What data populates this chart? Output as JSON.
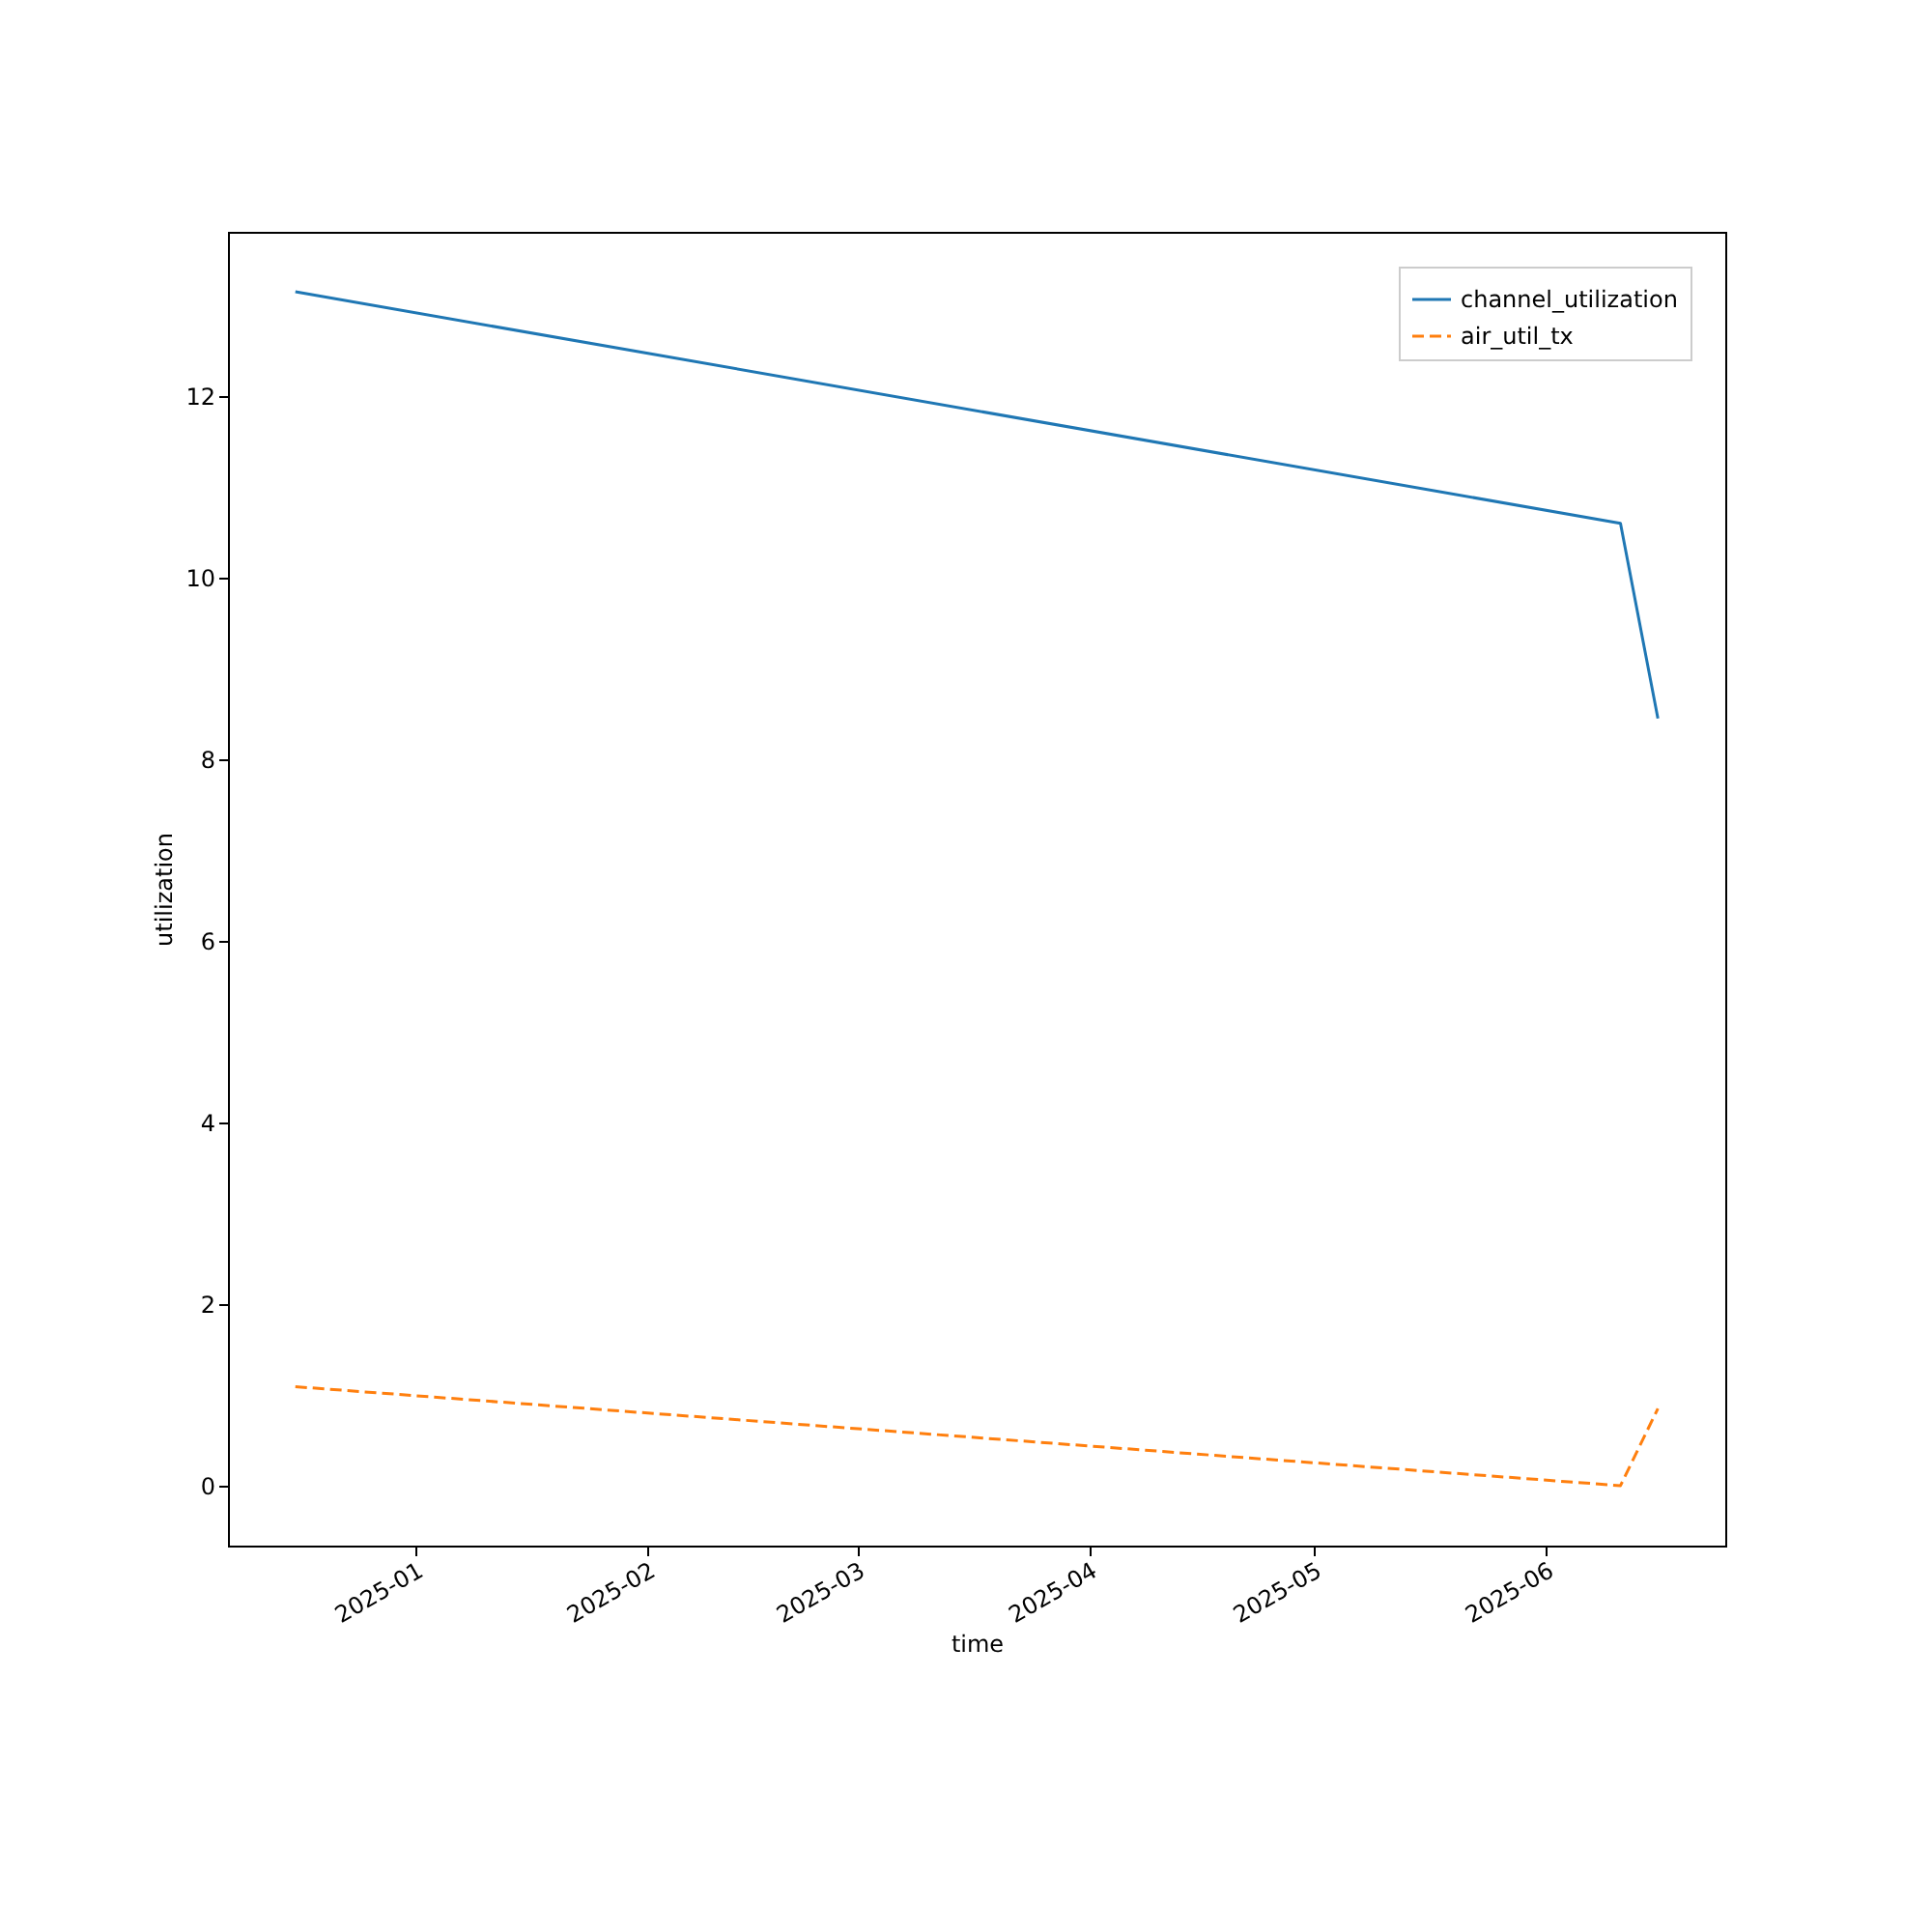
{
  "chart_data": {
    "type": "line",
    "xlabel": "time",
    "ylabel": "utilization",
    "x": [
      "2024-12-16",
      "2025-06-11",
      "2025-06-16"
    ],
    "series": [
      {
        "name": "channel_utilization",
        "color": "#1f77b4",
        "line_style": "solid",
        "values": [
          13.15,
          10.6,
          8.45
        ]
      },
      {
        "name": "air_util_tx",
        "color": "#ff7f0e",
        "line_style": "dashed",
        "values": [
          1.09,
          0.0,
          0.85
        ]
      }
    ],
    "xlim": [
      "2024-12-07",
      "2025-06-25"
    ],
    "xticks": [
      "2025-01",
      "2025-02",
      "2025-03",
      "2025-04",
      "2025-05",
      "2025-06"
    ],
    "ylim": [
      -0.66,
      13.81
    ],
    "yticks": [
      0,
      2,
      4,
      6,
      8,
      10,
      12
    ],
    "grid": false,
    "legend": "top right",
    "marker": "none"
  }
}
